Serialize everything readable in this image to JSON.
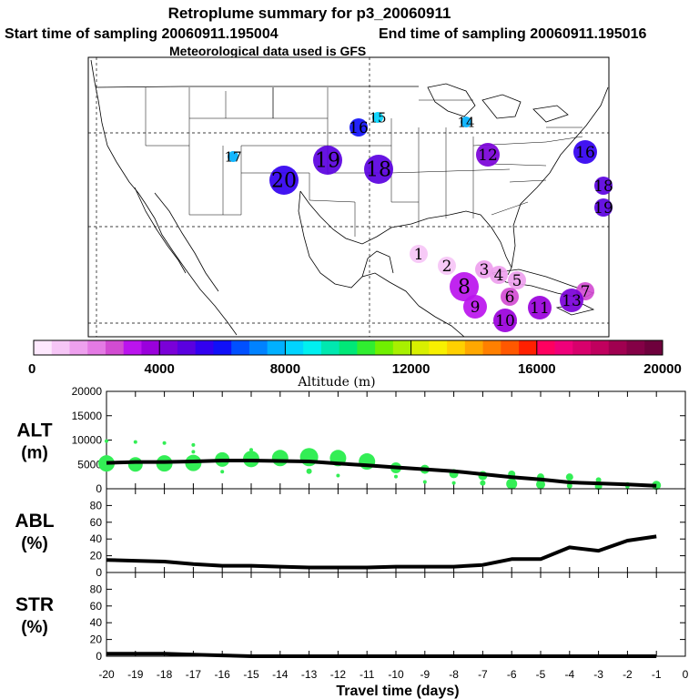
{
  "header": {
    "title": "Retroplume summary for p3_20060911",
    "start_label": "Start time of sampling 20060911.195004",
    "end_label": "End time of sampling 20060911.195016",
    "met_label": "Meteorological data used is GFS"
  },
  "colorbar": {
    "label": "Altitude (m)",
    "min": 0,
    "max": 20000,
    "ticks": [
      {
        "value": 0,
        "label": "0"
      },
      {
        "value": 4000,
        "label": "4000"
      },
      {
        "value": 8000,
        "label": "8000"
      },
      {
        "value": 12000,
        "label": "12000"
      },
      {
        "value": 16000,
        "label": "16000"
      },
      {
        "value": 20000,
        "label": "20000"
      }
    ],
    "colors": [
      "#fde8fd",
      "#f6c6f6",
      "#eea0ee",
      "#e47ae4",
      "#d24cd2",
      "#bb14ee",
      "#9a00dc",
      "#7a00d8",
      "#5a00e0",
      "#3200f0",
      "#1010f8",
      "#0050ff",
      "#0082ff",
      "#00b0ff",
      "#00d4ff",
      "#00f0f0",
      "#00e8b0",
      "#00e878",
      "#30ee30",
      "#70f000",
      "#a8f000",
      "#d8f000",
      "#f8f000",
      "#ffd000",
      "#ffa800",
      "#ff8000",
      "#ff5800",
      "#ff2000",
      "#ff0060",
      "#f0007a",
      "#d8006c",
      "#c0005e",
      "#a00050",
      "#840046",
      "#6e003c"
    ]
  },
  "map_markers": [
    {
      "label": "1",
      "alt": 600,
      "size": "small"
    },
    {
      "label": "2",
      "alt": 1000,
      "size": "small"
    },
    {
      "label": "3",
      "alt": 1300,
      "size": "small"
    },
    {
      "label": "4",
      "alt": 1500,
      "size": "small"
    },
    {
      "label": "5",
      "alt": 1700,
      "size": "small"
    },
    {
      "label": "6",
      "alt": 2500,
      "size": "small"
    },
    {
      "label": "7",
      "alt": 2800,
      "size": "small"
    },
    {
      "label": "8",
      "alt": 3300,
      "size": "large"
    },
    {
      "label": "9",
      "alt": 3300,
      "size": "medium"
    },
    {
      "label": "10",
      "alt": 3500,
      "size": "medium"
    },
    {
      "label": "11",
      "alt": 3700,
      "size": "medium"
    },
    {
      "label": "12",
      "alt": 4200,
      "size": "medium"
    },
    {
      "label": "13",
      "alt": 4000,
      "size": "medium"
    },
    {
      "label": "14",
      "alt": 7800,
      "size": "tiny"
    },
    {
      "label": "15",
      "alt": 8000,
      "size": "tiny"
    },
    {
      "label": "16",
      "alt": 6200,
      "size": "small"
    },
    {
      "label": "16",
      "alt": 5500,
      "size": "medium"
    },
    {
      "label": "17",
      "alt": 7800,
      "size": "tiny"
    },
    {
      "label": "18",
      "alt": 4600,
      "size": "large"
    },
    {
      "label": "19",
      "alt": 4600,
      "size": "large"
    },
    {
      "label": "20",
      "alt": 5300,
      "size": "large"
    },
    {
      "label": "18",
      "alt": 5000,
      "size": "small"
    },
    {
      "label": "19",
      "alt": 5000,
      "size": "small"
    }
  ],
  "chart_data": [
    {
      "type": "line",
      "name": "ALT",
      "ylabel": "ALT (m)",
      "ylabel_line1": "ALT",
      "ylabel_line2": "(m)",
      "ylim": [
        0,
        20000
      ],
      "yticks": [
        0,
        5000,
        10000,
        15000,
        20000
      ],
      "xlim": [
        -20,
        0
      ],
      "x": [
        -20,
        -19,
        -18,
        -17,
        -16,
        -15,
        -14,
        -13,
        -12,
        -11,
        -10,
        -9,
        -8,
        -7,
        -6,
        -5,
        -4,
        -3,
        -2,
        -1
      ],
      "values": [
        5300,
        5500,
        5500,
        5600,
        5800,
        5800,
        5700,
        5600,
        5200,
        4800,
        4400,
        4000,
        3600,
        3000,
        2400,
        1900,
        1300,
        1100,
        900,
        600
      ],
      "scatter": {
        "color": "#33ee55",
        "points": [
          [
            -20,
            5200,
            9
          ],
          [
            -20,
            9800,
            2
          ],
          [
            -19,
            5000,
            8
          ],
          [
            -19,
            9600,
            2
          ],
          [
            -18,
            5200,
            9
          ],
          [
            -18,
            9400,
            2
          ],
          [
            -17,
            5300,
            9
          ],
          [
            -17,
            9000,
            2
          ],
          [
            -17,
            7600,
            2
          ],
          [
            -16,
            6000,
            8
          ],
          [
            -16,
            3500,
            2
          ],
          [
            -15,
            6100,
            9
          ],
          [
            -15,
            8000,
            2
          ],
          [
            -14,
            6300,
            9
          ],
          [
            -13,
            6500,
            10
          ],
          [
            -13,
            3600,
            3
          ],
          [
            -12,
            6300,
            9
          ],
          [
            -12,
            2700,
            2
          ],
          [
            -11,
            5600,
            9
          ],
          [
            -10,
            4300,
            6
          ],
          [
            -10,
            2500,
            2
          ],
          [
            -9,
            4000,
            5
          ],
          [
            -9,
            1400,
            2
          ],
          [
            -8,
            3100,
            5
          ],
          [
            -8,
            1200,
            2
          ],
          [
            -7,
            2700,
            5
          ],
          [
            -7,
            1200,
            3
          ],
          [
            -6,
            3000,
            4
          ],
          [
            -6,
            1000,
            6
          ],
          [
            -5,
            2400,
            4
          ],
          [
            -5,
            900,
            5
          ],
          [
            -4,
            2400,
            4
          ],
          [
            -4,
            600,
            3
          ],
          [
            -3,
            1800,
            3
          ],
          [
            -3,
            500,
            4
          ],
          [
            -2,
            800,
            3
          ],
          [
            -2,
            300,
            2
          ],
          [
            -1,
            700,
            5
          ]
        ]
      }
    },
    {
      "type": "line",
      "name": "ABL",
      "ylabel": "ABL (%)",
      "ylabel_line1": "ABL",
      "ylabel_line2": "(%)",
      "ylim": [
        0,
        100
      ],
      "yticks": [
        0,
        20,
        40,
        60,
        80
      ],
      "xlim": [
        -20,
        0
      ],
      "x": [
        -20,
        -19,
        -18,
        -17,
        -16,
        -15,
        -14,
        -13,
        -12,
        -11,
        -10,
        -9,
        -8,
        -7,
        -6,
        -5,
        -4,
        -3,
        -2,
        -1
      ],
      "values": [
        15,
        14,
        13,
        10,
        8,
        8,
        7,
        6,
        6,
        6,
        7,
        7,
        7,
        9,
        16,
        16,
        30,
        26,
        38,
        43
      ]
    },
    {
      "type": "line",
      "name": "STR",
      "ylabel": "STR (%)",
      "ylabel_line1": "STR",
      "ylabel_line2": "(%)",
      "ylim": [
        0,
        100
      ],
      "yticks": [
        0,
        20,
        40,
        60,
        80
      ],
      "xlim": [
        -20,
        0
      ],
      "x": [
        -20,
        -19,
        -18,
        -17,
        -16,
        -15,
        -14,
        -13,
        -12,
        -11,
        -10,
        -9,
        -8,
        -7,
        -6,
        -5,
        -4,
        -3,
        -2,
        -1
      ],
      "values": [
        3,
        3,
        3,
        2,
        1,
        0,
        0,
        0,
        0,
        0,
        0,
        0,
        0,
        0,
        0,
        0,
        0,
        0,
        0,
        0
      ],
      "xlabel": "Travel time (days)",
      "xticks": [
        -20,
        -19,
        -18,
        -17,
        -16,
        -15,
        -14,
        -13,
        -12,
        -11,
        -10,
        -9,
        -8,
        -7,
        -6,
        -5,
        -4,
        -3,
        -2,
        -1,
        0
      ]
    }
  ]
}
